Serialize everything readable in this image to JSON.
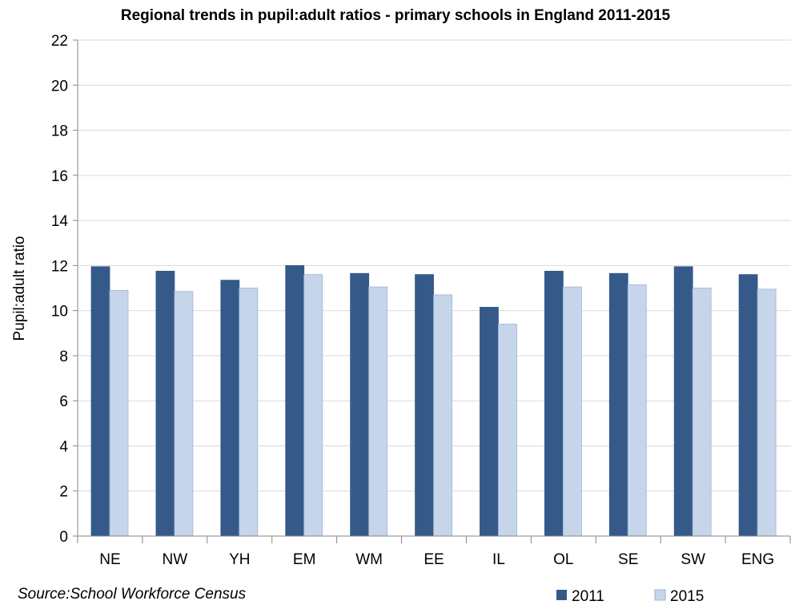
{
  "chart_data": {
    "type": "bar",
    "title": "Regional trends in pupil:adult ratios - primary schools in England 2011-2015",
    "xlabel": "",
    "ylabel": "Pupil:adult ratio",
    "ylim": [
      0,
      22
    ],
    "yticks": [
      0,
      2,
      4,
      6,
      8,
      10,
      12,
      14,
      16,
      18,
      20,
      22
    ],
    "grid": true,
    "legend_position": "bottom-right",
    "categories": [
      "NE",
      "NW",
      "YH",
      "EM",
      "WM",
      "EE",
      "IL",
      "OL",
      "SE",
      "SW",
      "ENG"
    ],
    "series": [
      {
        "name": "2011",
        "color": "#355A8A",
        "values": [
          11.95,
          11.75,
          11.35,
          12.0,
          11.65,
          11.6,
          10.15,
          11.75,
          11.65,
          11.95,
          11.6
        ]
      },
      {
        "name": "2015",
        "color": "#C6D5EA",
        "values": [
          10.9,
          10.85,
          11.0,
          11.6,
          11.05,
          10.7,
          9.4,
          11.05,
          11.15,
          11.0,
          10.95
        ]
      }
    ],
    "source": "Source:School Workforce Census"
  }
}
